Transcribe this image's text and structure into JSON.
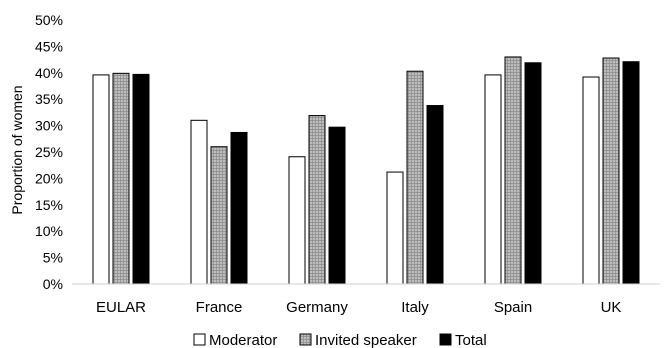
{
  "chart_data": {
    "type": "bar",
    "title": "",
    "xlabel": "",
    "ylabel": "Proportion of women",
    "ylim": [
      0,
      50
    ],
    "y_ticks": [
      "0%",
      "5%",
      "10%",
      "15%",
      "20%",
      "25%",
      "30%",
      "35%",
      "40%",
      "45%",
      "50%"
    ],
    "grid": false,
    "legend_position": "bottom",
    "categories": [
      "EULAR",
      "France",
      "Germany",
      "Italy",
      "Spain",
      "UK"
    ],
    "series": [
      {
        "name": "Moderator",
        "values": [
          39.6,
          31.0,
          24.1,
          21.2,
          39.6,
          39.2
        ],
        "fill": "#ffffff",
        "pattern": "none"
      },
      {
        "name": "Invited speaker",
        "values": [
          39.9,
          26.0,
          31.9,
          40.3,
          43.0,
          42.8
        ],
        "fill": "#bfbfbf",
        "pattern": "crosshatch"
      },
      {
        "name": "Total",
        "values": [
          39.7,
          28.7,
          29.7,
          33.8,
          41.9,
          42.1
        ],
        "fill": "#000000",
        "pattern": "none"
      }
    ]
  }
}
